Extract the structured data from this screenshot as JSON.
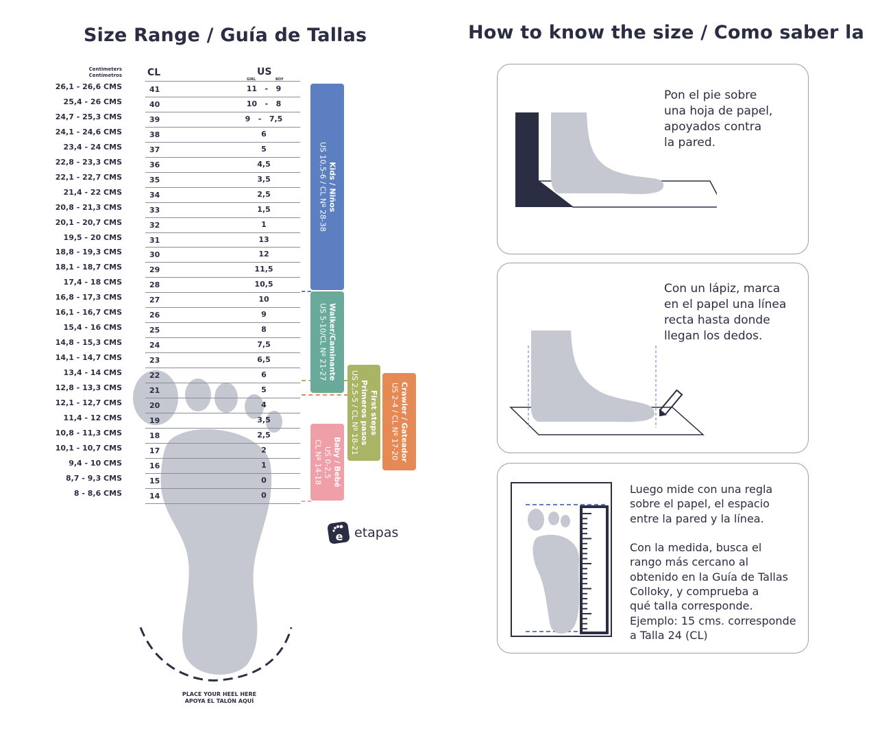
{
  "left_title": "Size Range / Guía de Tallas",
  "right_title": "How to know the size / Como saber la talla",
  "table": {
    "cm_header": [
      "Centimeters",
      "Centímetros"
    ],
    "cl_header": "CL",
    "us_header": "US",
    "us_girl": "GIRL",
    "us_boy": "BOY",
    "rows": [
      {
        "cm": "26,1 - 26,6 CMS",
        "cl": "41",
        "us": "11   -   9"
      },
      {
        "cm": "25,4 - 26 CMS",
        "cl": "40",
        "us": "10   -   8"
      },
      {
        "cm": "24,7 - 25,3 CMS",
        "cl": "39",
        "us": "9   -   7,5"
      },
      {
        "cm": "24,1 - 24,6 CMS",
        "cl": "38",
        "us": "6"
      },
      {
        "cm": "23,4 - 24 CMS",
        "cl": "37",
        "us": "5"
      },
      {
        "cm": "22,8 - 23,3 CMS",
        "cl": "36",
        "us": "4,5"
      },
      {
        "cm": "22,1 - 22,7 CMS",
        "cl": "35",
        "us": "3,5"
      },
      {
        "cm": "21,4 - 22 CMS",
        "cl": "34",
        "us": "2,5"
      },
      {
        "cm": "20,8 -  21,3 CMS",
        "cl": "33",
        "us": "1,5"
      },
      {
        "cm": "20,1 - 20,7 CMS",
        "cl": "32",
        "us": "1"
      },
      {
        "cm": "19,5 - 20 CMS",
        "cl": "31",
        "us": "13"
      },
      {
        "cm": "18,8 - 19,3 CMS",
        "cl": "30",
        "us": "12"
      },
      {
        "cm": "18,1 - 18,7 CMS",
        "cl": "29",
        "us": "11,5"
      },
      {
        "cm": "17,4 - 18 CMS",
        "cl": "28",
        "us": "10,5"
      },
      {
        "cm": "16,8 - 17,3 CMS",
        "cl": "27",
        "us": "10"
      },
      {
        "cm": "16,1 - 16,7 CMS",
        "cl": "26",
        "us": "9"
      },
      {
        "cm": "15,4 - 16 CMS",
        "cl": "25",
        "us": "8"
      },
      {
        "cm": "14,8 - 15,3 CMS",
        "cl": "24",
        "us": "7,5"
      },
      {
        "cm": "14,1  - 14,7 CMS",
        "cl": "23",
        "us": "6,5"
      },
      {
        "cm": "13,4 - 14 CMS",
        "cl": "22",
        "us": "6"
      },
      {
        "cm": "12,8 -  13,3 CMS",
        "cl": "21",
        "us": "5"
      },
      {
        "cm": "12,1 - 12,7 CMS",
        "cl": "20",
        "us": "4"
      },
      {
        "cm": "11,4 - 12 CMS",
        "cl": "19",
        "us": "3,5"
      },
      {
        "cm": "10,8 - 11,3 CMS",
        "cl": "18",
        "us": "2,5"
      },
      {
        "cm": "10,1 - 10,7 CMS",
        "cl": "17",
        "us": "2"
      },
      {
        "cm": "9,4 - 10 CMS",
        "cl": "16",
        "us": "1"
      },
      {
        "cm": "8,7 - 9,3 CMS",
        "cl": "15",
        "us": "0"
      },
      {
        "cm": "8 - 8,6 CMS",
        "cl": "14",
        "us": "0"
      }
    ]
  },
  "bands": {
    "kids": {
      "name": "Kids / Niños",
      "range": "US 10,5-6 / CL Nº 28-38",
      "color": "#5b7fc0"
    },
    "walker": {
      "name": "Walker/Caminante",
      "range": "US 5-10/CL Nº 21-27",
      "color": "#6aaa9a"
    },
    "first_steps": {
      "name": "First steps",
      "name2": "Primeros pasos",
      "range": "US 2,5-5 / CL Nº 18-21",
      "color": "#a9b465"
    },
    "crawler": {
      "name": "Crawler / Gateador",
      "range": "US 2-4 / CL Nº 17-20",
      "color": "#e58a55"
    },
    "baby": {
      "name": "Baby / Bebé",
      "range": "US 0-2,5",
      "range2": "CL Nº 14-18",
      "color": "#ee9fa8"
    }
  },
  "logo": "etapas",
  "heel_text": [
    "PLACE YOUR HEEL HERE",
    "APOYA EL TALÓN AQUÍ"
  ],
  "steps": [
    "Pon el pie sobre\nuna hoja de papel,\napoyados contra\nla pared.",
    "Con un lápiz, marca\nen el papel una línea\nrecta hasta donde\nllegan los dedos.",
    "Luego mide con una regla\nsobre el papel, el espacio\nentre la pared y la línea.\n\nCon la medida, busca el\nrango más cercano al\nobtenido en la Guía de Tallas\nColloky, y comprueba a\nqué talla corresponde.\nEjemplo:  15 cms. corresponde\na Talla 24 (CL)"
  ],
  "colors": {
    "ink": "#2b2d42",
    "foot": "#c5c7d1"
  }
}
